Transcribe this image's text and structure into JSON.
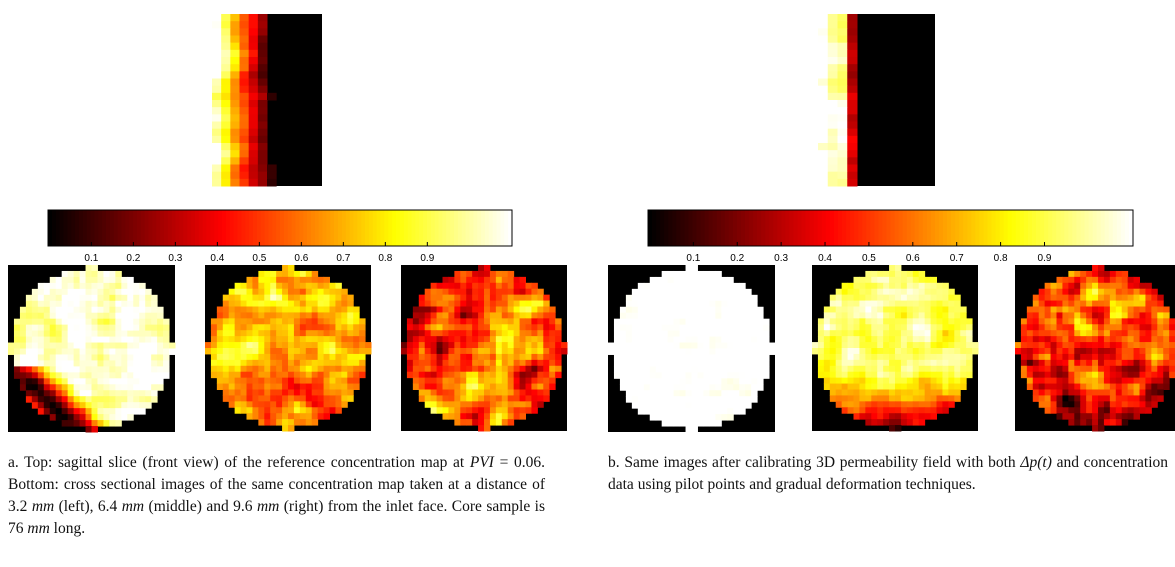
{
  "panels": [
    {
      "colorbar_ticks": [
        0.1,
        0.2,
        0.3,
        0.4,
        0.5,
        0.6,
        0.7,
        0.8,
        0.9
      ],
      "caption": [
        "a. Top: sagittal slice (front view) of the reference concentration map at ",
        "PVI",
        " = 0.06. Bottom: cross sectional images of the same concentration map taken at a distance of 3.2 ",
        "mm",
        " (left), 6.4 ",
        "mm",
        " (middle) and 9.6 ",
        "mm",
        " (right) from the inlet face. Core sample is 76 ",
        "mm",
        " long."
      ]
    },
    {
      "colorbar_ticks": [
        0.1,
        0.2,
        0.3,
        0.4,
        0.5,
        0.6,
        0.7,
        0.8,
        0.9
      ],
      "caption": [
        "b. Same images after calibrating 3D permeability field with both ",
        "Δp(t)",
        " and concentration data using pilot points and gradual deformation techniques."
      ]
    }
  ]
}
